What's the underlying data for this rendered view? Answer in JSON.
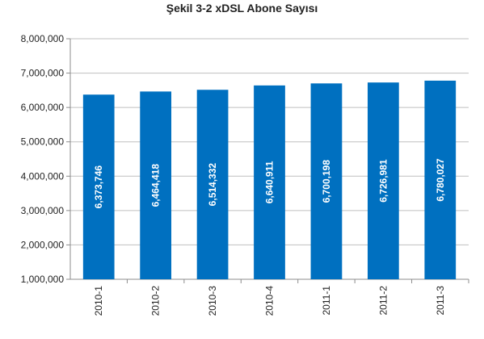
{
  "chart_data": {
    "type": "bar",
    "title": "Şekil 3-2 xDSL Abone Sayısı",
    "xlabel": "",
    "ylabel": "",
    "categories": [
      "2010-1",
      "2010-2",
      "2010-3",
      "2010-4",
      "2011-1",
      "2011-2",
      "2011-3"
    ],
    "values": [
      6373746,
      6464418,
      6514332,
      6640911,
      6700198,
      6726981,
      6780027
    ],
    "data_labels": [
      "6,373,746",
      "6,464,418",
      "6,514,332",
      "6,640,911",
      "6,700,198",
      "6,726,981",
      "6,780,027"
    ],
    "ylim": [
      1000000,
      8000000
    ],
    "yticks": [
      1000000,
      2000000,
      3000000,
      4000000,
      5000000,
      6000000,
      7000000,
      8000000
    ],
    "ytick_labels": [
      "1,000,000",
      "2,000,000",
      "3,000,000",
      "4,000,000",
      "5,000,000",
      "6,000,000",
      "7,000,000",
      "8,000,000"
    ],
    "grid": true,
    "legend": "none",
    "bar_color": "#0070C0"
  }
}
